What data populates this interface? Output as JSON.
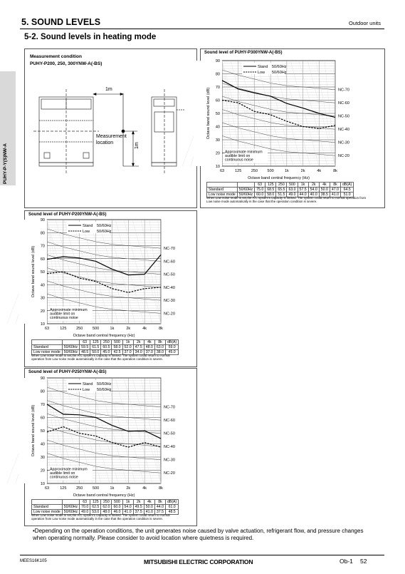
{
  "header": {
    "section_title": "5. SOUND LEVELS",
    "section_right": "Outdoor units",
    "subsection": "5-2. Sound levels in heating mode"
  },
  "side_tab": {
    "label": "PUHY-P-Y(S)NW-A"
  },
  "measurement": {
    "title": "Measurement condition",
    "models": "PUHY-P200, 250, 300YNW-A(-BS)",
    "dim_h": "1m",
    "dim_v": "1m",
    "location_label": [
      "Measurement",
      "location"
    ]
  },
  "freq_labels": [
    "63",
    "125",
    "250",
    "500",
    "1k",
    "2k",
    "4k",
    "8k"
  ],
  "y_ticks": [
    "90",
    "80",
    "70",
    "60",
    "50",
    "40",
    "30",
    "20",
    "10"
  ],
  "nc_labels": [
    "NC-70",
    "NC-60",
    "NC-50",
    "NC-40",
    "NC-30",
    "NC-20"
  ],
  "legend": {
    "stand": "Stand",
    "stand_hz": "50/60Hz",
    "low": "Low",
    "low_hz": "50/60Hz"
  },
  "axis": {
    "ylabel": "Octave band sound level (dB)",
    "xlabel": "Octave band central frequency (Hz)"
  },
  "threshold": [
    "Approximate minimum",
    "audible limit on",
    "continuous noise"
  ],
  "table_header": [
    "",
    "",
    "63",
    "125",
    "250",
    "500",
    "1k",
    "2k",
    "4k",
    "8k",
    "dB(A)"
  ],
  "note": "When Low noise mode is set,the A/C system's capacity is limited. The system could return to normal operation from Low noise mode automatically in the case that the operation condition is severe.",
  "charts": [
    {
      "title": "Sound level of PUHY-P300YNW-A(-BS)",
      "rows": [
        [
          "Standard",
          "50/60Hz",
          "75.0",
          "68.5",
          "65.5",
          "63.0",
          "57.5",
          "54.0",
          "50.0",
          "47.0",
          "64.5"
        ],
        [
          "Low noise mode",
          "50/60Hz",
          "60.0",
          "58.0",
          "51.5",
          "49.0",
          "44.0",
          "40.0",
          "38.5",
          "41.0",
          "51.0"
        ]
      ]
    },
    {
      "title": "Sound level of PUHY-P200YNW-A(-BS)",
      "rows": [
        [
          "Standard",
          "50/60Hz",
          "59.5",
          "61.5",
          "60.5",
          "58.0",
          "52.0",
          "47.5",
          "48.0",
          "63.0",
          "59.0"
        ],
        [
          "Low noise mode",
          "50/60Hz",
          "48.5",
          "50.0",
          "45.0",
          "42.5",
          "37.0",
          "34.0",
          "37.0",
          "38.0",
          "45.0"
        ]
      ]
    },
    {
      "title": "Sound level of PUHY-P250YNW-A(-BS)",
      "rows": [
        [
          "Standard",
          "50/60Hz",
          "70.0",
          "62.5",
          "62.0",
          "60.0",
          "54.0",
          "49.5",
          "50.0",
          "44.0",
          "61.0"
        ],
        [
          "Low noise mode",
          "50/60Hz",
          "49.0",
          "53.0",
          "48.0",
          "46.0",
          "41.0",
          "37.5",
          "41.0",
          "37.5",
          "48.5"
        ]
      ]
    }
  ],
  "chart_data": [
    {
      "type": "line",
      "title": "Sound level of PUHY-P300YNW-A(-BS)",
      "x": [
        "63",
        "125",
        "250",
        "500",
        "1k",
        "2k",
        "4k",
        "8k"
      ],
      "ylim": [
        10,
        90
      ],
      "series": [
        {
          "name": "Stand",
          "values": [
            75.0,
            68.5,
            65.5,
            63.0,
            57.5,
            54.0,
            50.0,
            47.0
          ]
        },
        {
          "name": "Low",
          "values": [
            60.0,
            58.0,
            51.5,
            49.0,
            44.0,
            40.0,
            38.5,
            41.0
          ]
        }
      ]
    },
    {
      "type": "line",
      "title": "Sound level of PUHY-P200YNW-A(-BS)",
      "x": [
        "63",
        "125",
        "250",
        "500",
        "1k",
        "2k",
        "4k",
        "8k"
      ],
      "ylim": [
        10,
        90
      ],
      "series": [
        {
          "name": "Stand",
          "values": [
            59.5,
            61.5,
            60.5,
            58.0,
            52.0,
            47.5,
            48.0,
            63.0
          ]
        },
        {
          "name": "Low",
          "values": [
            48.5,
            50.0,
            45.0,
            42.5,
            37.0,
            34.0,
            37.0,
            38.0
          ]
        }
      ]
    },
    {
      "type": "line",
      "title": "Sound level of PUHY-P250YNW-A(-BS)",
      "x": [
        "63",
        "125",
        "250",
        "500",
        "1k",
        "2k",
        "4k",
        "8k"
      ],
      "ylim": [
        10,
        90
      ],
      "series": [
        {
          "name": "Stand",
          "values": [
            70.0,
            62.5,
            62.0,
            60.0,
            54.0,
            49.5,
            50.0,
            44.0
          ]
        },
        {
          "name": "Low",
          "values": [
            49.0,
            53.0,
            48.0,
            46.0,
            41.0,
            37.5,
            41.0,
            37.5
          ]
        }
      ]
    }
  ],
  "bullet": "•Depending on the operation conditions, the unit generates noise caused by valve actuation, refrigerant flow, and pressure changes when operating normally. Please consider to avoid location where quietness is required.",
  "footer": {
    "doc_code": "MEES16K105",
    "brand": "MITSUBISHI ELECTRIC CORPORATION",
    "section": "Ob-1",
    "page": "52"
  }
}
